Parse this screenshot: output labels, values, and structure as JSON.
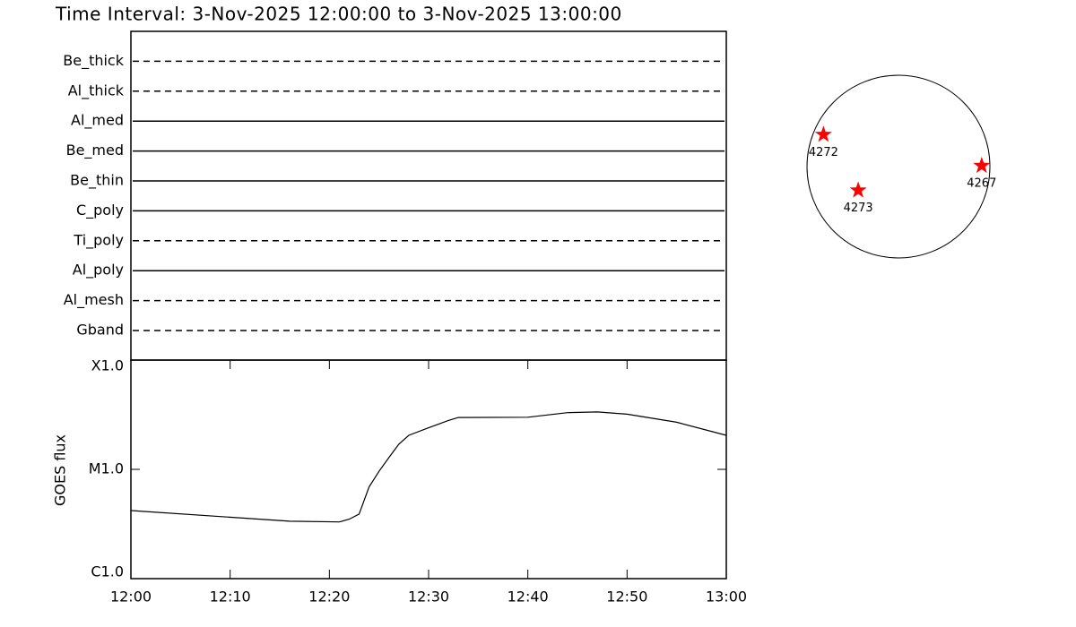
{
  "chart_data": [
    {
      "type": "timeline",
      "title": "Time Interval:  3-Nov-2025 12:00:00 to  3-Nov-2025 13:00:00",
      "categories": [
        "Be_thick",
        "Al_thick",
        "Al_med",
        "Be_med",
        "Be_thin",
        "C_poly",
        "Ti_poly",
        "Al_poly",
        "Al_mesh",
        "Gband"
      ],
      "styles": [
        "dashed",
        "dashed",
        "solid",
        "solid",
        "solid",
        "solid",
        "dashed",
        "solid",
        "dashed",
        "dashed"
      ],
      "color": "#000000"
    },
    {
      "type": "line",
      "ylabel": "GOES flux",
      "log_y": true,
      "color": "#000000",
      "x": [
        "12:00",
        "12:16",
        "12:21",
        "12:22",
        "12:23",
        "12:24",
        "12:25",
        "12:26",
        "12:27",
        "12:28",
        "12:30",
        "12:32",
        "12:33",
        "12:40",
        "12:44",
        "12:47",
        "12:50",
        "12:55",
        "13:00"
      ],
      "values": [
        4.2e-06,
        3.35e-06,
        3.3e-06,
        3.5e-06,
        3.9e-06,
        6.9e-06,
        9.6e-06,
        1.28e-05,
        1.7e-05,
        2.05e-05,
        2.4e-05,
        2.8e-05,
        2.98e-05,
        3e-05,
        3.3e-05,
        3.35e-05,
        3.2e-05,
        2.7e-05,
        2.05e-05
      ],
      "xlim": [
        "12:00",
        "13:00"
      ],
      "xticks": [
        "12:00",
        "12:10",
        "12:20",
        "12:30",
        "12:40",
        "12:50",
        "13:00"
      ],
      "ylim": [
        1e-06,
        0.0001
      ],
      "yticks": [
        {
          "value": 0.0001,
          "label": "X1.0"
        },
        {
          "value": 1e-05,
          "label": "M1.0"
        },
        {
          "value": 1e-06,
          "label": "C1.0"
        }
      ]
    },
    {
      "type": "scatter",
      "color": "#ff0000",
      "labels": [
        "4272",
        "4273",
        "4267"
      ],
      "x": [
        -0.82,
        -0.44,
        0.91
      ],
      "values": [
        0.35,
        -0.26,
        0.01
      ],
      "xlim": [
        -1,
        1
      ],
      "ylim": [
        -1,
        1
      ]
    }
  ]
}
